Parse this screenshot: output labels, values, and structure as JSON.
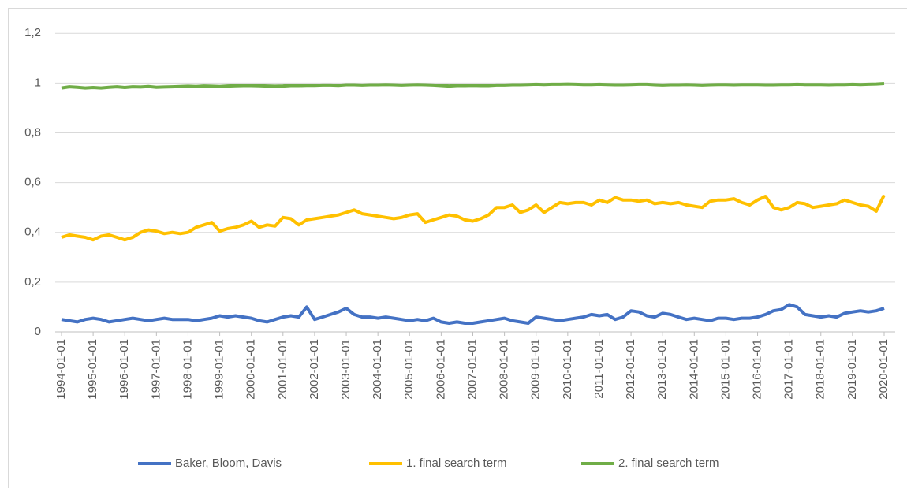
{
  "chart_data": {
    "type": "line",
    "categories": [
      "1994-01-01",
      null,
      null,
      null,
      "1995-01-01",
      null,
      null,
      null,
      "1996-01-01",
      null,
      null,
      null,
      "1997-01-01",
      null,
      null,
      null,
      "1998-01-01",
      null,
      null,
      null,
      "1999-01-01",
      null,
      null,
      null,
      "2000-01-01",
      null,
      null,
      null,
      "2001-01-01",
      null,
      null,
      null,
      "2002-01-01",
      null,
      null,
      null,
      "2003-01-01",
      null,
      null,
      null,
      "2004-01-01",
      null,
      null,
      null,
      "2005-01-01",
      null,
      null,
      null,
      "2006-01-01",
      null,
      null,
      null,
      "2007-01-01",
      null,
      null,
      null,
      "2008-01-01",
      null,
      null,
      null,
      "2009-01-01",
      null,
      null,
      null,
      "2010-01-01",
      null,
      null,
      null,
      "2011-01-01",
      null,
      null,
      null,
      "2012-01-01",
      null,
      null,
      null,
      "2013-01-01",
      null,
      null,
      null,
      "2014-01-01",
      null,
      null,
      null,
      "2015-01-01",
      null,
      null,
      null,
      "2016-01-01",
      null,
      null,
      null,
      "2017-01-01",
      null,
      null,
      null,
      "2018-01-01",
      null,
      null,
      null,
      "2019-01-01",
      null,
      null,
      null,
      "2020-01-01"
    ],
    "series": [
      {
        "name": "Baker, Bloom, Davis",
        "color": "#4472c4",
        "values": [
          0.05,
          0.045,
          0.04,
          0.05,
          0.055,
          0.05,
          0.04,
          0.045,
          0.05,
          0.055,
          0.05,
          0.045,
          0.05,
          0.055,
          0.05,
          0.05,
          0.05,
          0.045,
          0.05,
          0.055,
          0.065,
          0.06,
          0.065,
          0.06,
          0.055,
          0.045,
          0.04,
          0.05,
          0.06,
          0.065,
          0.06,
          0.1,
          0.05,
          0.06,
          0.07,
          0.08,
          0.095,
          0.07,
          0.06,
          0.06,
          0.055,
          0.06,
          0.055,
          0.05,
          0.045,
          0.05,
          0.045,
          0.055,
          0.04,
          0.035,
          0.04,
          0.035,
          0.035,
          0.04,
          0.045,
          0.05,
          0.055,
          0.045,
          0.04,
          0.035,
          0.06,
          0.055,
          0.05,
          0.045,
          0.05,
          0.055,
          0.06,
          0.07,
          0.065,
          0.07,
          0.05,
          0.06,
          0.085,
          0.08,
          0.065,
          0.06,
          0.075,
          0.07,
          0.06,
          0.05,
          0.055,
          0.05,
          0.045,
          0.055,
          0.055,
          0.05,
          0.055,
          0.055,
          0.06,
          0.07,
          0.085,
          0.09,
          0.11,
          0.1,
          0.07,
          0.065,
          0.06,
          0.065,
          0.06,
          0.075,
          0.08,
          0.085,
          0.08,
          0.085,
          0.095
        ]
      },
      {
        "name": "1. final search term",
        "color": "#ffc000",
        "values": [
          0.38,
          0.39,
          0.385,
          0.38,
          0.37,
          0.385,
          0.39,
          0.38,
          0.37,
          0.38,
          0.4,
          0.41,
          0.405,
          0.395,
          0.4,
          0.395,
          0.4,
          0.42,
          0.43,
          0.44,
          0.405,
          0.415,
          0.42,
          0.43,
          0.445,
          0.42,
          0.43,
          0.425,
          0.46,
          0.455,
          0.43,
          0.45,
          0.455,
          0.46,
          0.465,
          0.47,
          0.48,
          0.49,
          0.475,
          0.47,
          0.465,
          0.46,
          0.455,
          0.46,
          0.47,
          0.475,
          0.44,
          0.45,
          0.46,
          0.47,
          0.465,
          0.45,
          0.445,
          0.455,
          0.47,
          0.5,
          0.5,
          0.51,
          0.48,
          0.49,
          0.51,
          0.48,
          0.5,
          0.52,
          0.515,
          0.52,
          0.52,
          0.51,
          0.53,
          0.52,
          0.54,
          0.53,
          0.53,
          0.525,
          0.53,
          0.515,
          0.52,
          0.515,
          0.52,
          0.51,
          0.505,
          0.5,
          0.525,
          0.53,
          0.53,
          0.535,
          0.52,
          0.51,
          0.53,
          0.545,
          0.5,
          0.49,
          0.5,
          0.52,
          0.515,
          0.5,
          0.505,
          0.51,
          0.515,
          0.53,
          0.52,
          0.51,
          0.505,
          0.485,
          0.55
        ]
      },
      {
        "name": "2. final search term",
        "color": "#70ad47",
        "values": [
          0.98,
          0.985,
          0.983,
          0.98,
          0.982,
          0.98,
          0.983,
          0.985,
          0.982,
          0.985,
          0.984,
          0.986,
          0.983,
          0.984,
          0.985,
          0.986,
          0.987,
          0.986,
          0.988,
          0.987,
          0.986,
          0.988,
          0.989,
          0.99,
          0.99,
          0.989,
          0.988,
          0.987,
          0.988,
          0.99,
          0.99,
          0.991,
          0.991,
          0.992,
          0.992,
          0.991,
          0.993,
          0.993,
          0.992,
          0.993,
          0.993,
          0.994,
          0.993,
          0.992,
          0.993,
          0.994,
          0.993,
          0.992,
          0.99,
          0.988,
          0.99,
          0.99,
          0.991,
          0.99,
          0.99,
          0.992,
          0.992,
          0.993,
          0.993,
          0.994,
          0.995,
          0.994,
          0.995,
          0.995,
          0.996,
          0.995,
          0.994,
          0.994,
          0.995,
          0.994,
          0.993,
          0.993,
          0.994,
          0.995,
          0.995,
          0.993,
          0.992,
          0.993,
          0.993,
          0.994,
          0.993,
          0.992,
          0.993,
          0.994,
          0.994,
          0.993,
          0.994,
          0.994,
          0.994,
          0.993,
          0.993,
          0.994,
          0.994,
          0.995,
          0.994,
          0.994,
          0.994,
          0.993,
          0.994,
          0.994,
          0.995,
          0.994,
          0.995,
          0.996,
          0.998
        ]
      }
    ],
    "ylim": [
      0,
      1.2
    ],
    "yticks": [
      0,
      {
        "value": 0.2,
        "label": "0,2"
      },
      {
        "value": 0.4,
        "label": "0,4"
      },
      {
        "value": 0.6,
        "label": "0,6"
      },
      {
        "value": 0.8,
        "label": "0,8"
      },
      1,
      {
        "value": 1.2,
        "label": "1,2"
      }
    ],
    "grid": true,
    "legend": "bottom"
  }
}
